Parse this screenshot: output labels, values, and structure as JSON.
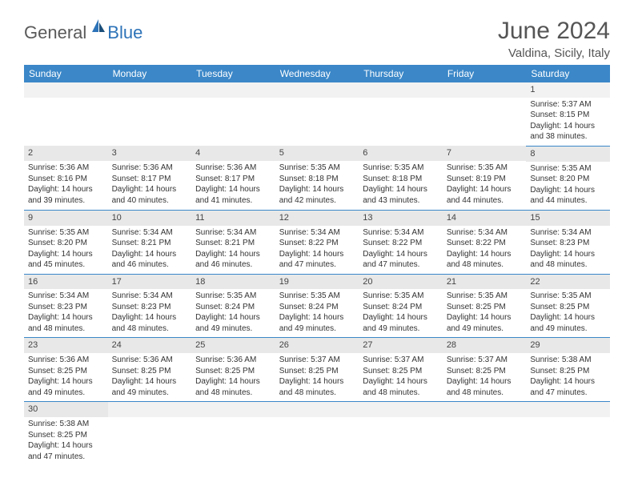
{
  "brand": {
    "main": "General",
    "sub": "Blue"
  },
  "title": "June 2024",
  "location": "Valdina, Sicily, Italy",
  "colors": {
    "header_bg": "#3b87c8",
    "header_text": "#ffffff",
    "cell_border": "#3b87c8",
    "daynum_bg": "#e8e8e8",
    "text": "#333333",
    "title": "#555555"
  },
  "weekdays": [
    "Sunday",
    "Monday",
    "Tuesday",
    "Wednesday",
    "Thursday",
    "Friday",
    "Saturday"
  ],
  "weeks": [
    [
      {
        "day": "",
        "lines": []
      },
      {
        "day": "",
        "lines": []
      },
      {
        "day": "",
        "lines": []
      },
      {
        "day": "",
        "lines": []
      },
      {
        "day": "",
        "lines": []
      },
      {
        "day": "",
        "lines": []
      },
      {
        "day": "1",
        "lines": [
          "Sunrise: 5:37 AM",
          "Sunset: 8:15 PM",
          "Daylight: 14 hours and 38 minutes."
        ]
      }
    ],
    [
      {
        "day": "2",
        "lines": [
          "Sunrise: 5:36 AM",
          "Sunset: 8:16 PM",
          "Daylight: 14 hours and 39 minutes."
        ]
      },
      {
        "day": "3",
        "lines": [
          "Sunrise: 5:36 AM",
          "Sunset: 8:17 PM",
          "Daylight: 14 hours and 40 minutes."
        ]
      },
      {
        "day": "4",
        "lines": [
          "Sunrise: 5:36 AM",
          "Sunset: 8:17 PM",
          "Daylight: 14 hours and 41 minutes."
        ]
      },
      {
        "day": "5",
        "lines": [
          "Sunrise: 5:35 AM",
          "Sunset: 8:18 PM",
          "Daylight: 14 hours and 42 minutes."
        ]
      },
      {
        "day": "6",
        "lines": [
          "Sunrise: 5:35 AM",
          "Sunset: 8:18 PM",
          "Daylight: 14 hours and 43 minutes."
        ]
      },
      {
        "day": "7",
        "lines": [
          "Sunrise: 5:35 AM",
          "Sunset: 8:19 PM",
          "Daylight: 14 hours and 44 minutes."
        ]
      },
      {
        "day": "8",
        "lines": [
          "Sunrise: 5:35 AM",
          "Sunset: 8:20 PM",
          "Daylight: 14 hours and 44 minutes."
        ]
      }
    ],
    [
      {
        "day": "9",
        "lines": [
          "Sunrise: 5:35 AM",
          "Sunset: 8:20 PM",
          "Daylight: 14 hours and 45 minutes."
        ]
      },
      {
        "day": "10",
        "lines": [
          "Sunrise: 5:34 AM",
          "Sunset: 8:21 PM",
          "Daylight: 14 hours and 46 minutes."
        ]
      },
      {
        "day": "11",
        "lines": [
          "Sunrise: 5:34 AM",
          "Sunset: 8:21 PM",
          "Daylight: 14 hours and 46 minutes."
        ]
      },
      {
        "day": "12",
        "lines": [
          "Sunrise: 5:34 AM",
          "Sunset: 8:22 PM",
          "Daylight: 14 hours and 47 minutes."
        ]
      },
      {
        "day": "13",
        "lines": [
          "Sunrise: 5:34 AM",
          "Sunset: 8:22 PM",
          "Daylight: 14 hours and 47 minutes."
        ]
      },
      {
        "day": "14",
        "lines": [
          "Sunrise: 5:34 AM",
          "Sunset: 8:22 PM",
          "Daylight: 14 hours and 48 minutes."
        ]
      },
      {
        "day": "15",
        "lines": [
          "Sunrise: 5:34 AM",
          "Sunset: 8:23 PM",
          "Daylight: 14 hours and 48 minutes."
        ]
      }
    ],
    [
      {
        "day": "16",
        "lines": [
          "Sunrise: 5:34 AM",
          "Sunset: 8:23 PM",
          "Daylight: 14 hours and 48 minutes."
        ]
      },
      {
        "day": "17",
        "lines": [
          "Sunrise: 5:34 AM",
          "Sunset: 8:23 PM",
          "Daylight: 14 hours and 48 minutes."
        ]
      },
      {
        "day": "18",
        "lines": [
          "Sunrise: 5:35 AM",
          "Sunset: 8:24 PM",
          "Daylight: 14 hours and 49 minutes."
        ]
      },
      {
        "day": "19",
        "lines": [
          "Sunrise: 5:35 AM",
          "Sunset: 8:24 PM",
          "Daylight: 14 hours and 49 minutes."
        ]
      },
      {
        "day": "20",
        "lines": [
          "Sunrise: 5:35 AM",
          "Sunset: 8:24 PM",
          "Daylight: 14 hours and 49 minutes."
        ]
      },
      {
        "day": "21",
        "lines": [
          "Sunrise: 5:35 AM",
          "Sunset: 8:25 PM",
          "Daylight: 14 hours and 49 minutes."
        ]
      },
      {
        "day": "22",
        "lines": [
          "Sunrise: 5:35 AM",
          "Sunset: 8:25 PM",
          "Daylight: 14 hours and 49 minutes."
        ]
      }
    ],
    [
      {
        "day": "23",
        "lines": [
          "Sunrise: 5:36 AM",
          "Sunset: 8:25 PM",
          "Daylight: 14 hours and 49 minutes."
        ]
      },
      {
        "day": "24",
        "lines": [
          "Sunrise: 5:36 AM",
          "Sunset: 8:25 PM",
          "Daylight: 14 hours and 49 minutes."
        ]
      },
      {
        "day": "25",
        "lines": [
          "Sunrise: 5:36 AM",
          "Sunset: 8:25 PM",
          "Daylight: 14 hours and 48 minutes."
        ]
      },
      {
        "day": "26",
        "lines": [
          "Sunrise: 5:37 AM",
          "Sunset: 8:25 PM",
          "Daylight: 14 hours and 48 minutes."
        ]
      },
      {
        "day": "27",
        "lines": [
          "Sunrise: 5:37 AM",
          "Sunset: 8:25 PM",
          "Daylight: 14 hours and 48 minutes."
        ]
      },
      {
        "day": "28",
        "lines": [
          "Sunrise: 5:37 AM",
          "Sunset: 8:25 PM",
          "Daylight: 14 hours and 48 minutes."
        ]
      },
      {
        "day": "29",
        "lines": [
          "Sunrise: 5:38 AM",
          "Sunset: 8:25 PM",
          "Daylight: 14 hours and 47 minutes."
        ]
      }
    ],
    [
      {
        "day": "30",
        "lines": [
          "Sunrise: 5:38 AM",
          "Sunset: 8:25 PM",
          "Daylight: 14 hours and 47 minutes."
        ]
      },
      {
        "day": "",
        "lines": []
      },
      {
        "day": "",
        "lines": []
      },
      {
        "day": "",
        "lines": []
      },
      {
        "day": "",
        "lines": []
      },
      {
        "day": "",
        "lines": []
      },
      {
        "day": "",
        "lines": []
      }
    ]
  ]
}
